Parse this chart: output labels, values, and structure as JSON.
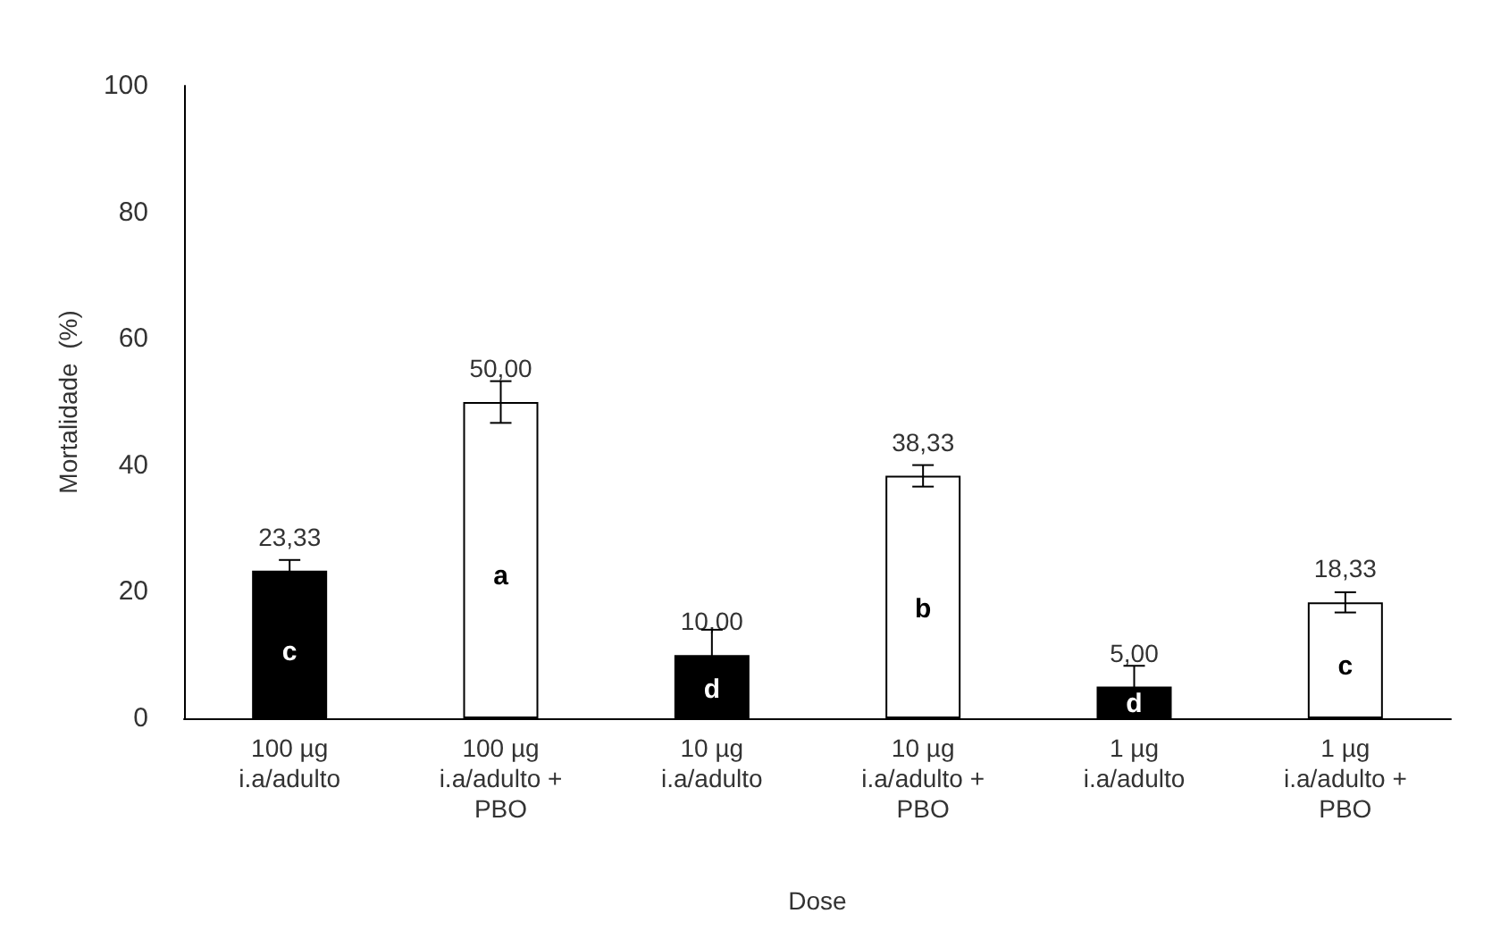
{
  "chart_data": {
    "type": "bar",
    "xlabel": "Dose",
    "ylabel": "Mortalidade  (%)",
    "categories": [
      "100 µg\ni.a/adulto",
      "100 µg\ni.a/adulto +\nPBO",
      "10 µg\ni.a/adulto",
      "10 µg\ni.a/adulto +\nPBO",
      "1 µg\ni.a/adulto",
      "1 µg\ni.a/adulto +\nPBO"
    ],
    "values": [
      23.33,
      50,
      10,
      38.33,
      5,
      18.33
    ],
    "colors": [
      "#000000",
      "#ffffff",
      "#000000",
      "#ffffff",
      "#000000",
      "#ffffff"
    ],
    "errors": [
      1.7,
      3.3,
      4,
      1.7,
      3.3,
      1.6
    ],
    "value_labels": [
      "23,33",
      "50,00",
      "10,00",
      "38,33",
      "5,00",
      "18,33"
    ],
    "ylim": [
      0,
      100
    ],
    "yticks": [
      0,
      20,
      40,
      60,
      80,
      100
    ],
    "grid": false,
    "annotations": [
      "c",
      "a",
      "d",
      "b",
      "d",
      "c"
    ]
  }
}
